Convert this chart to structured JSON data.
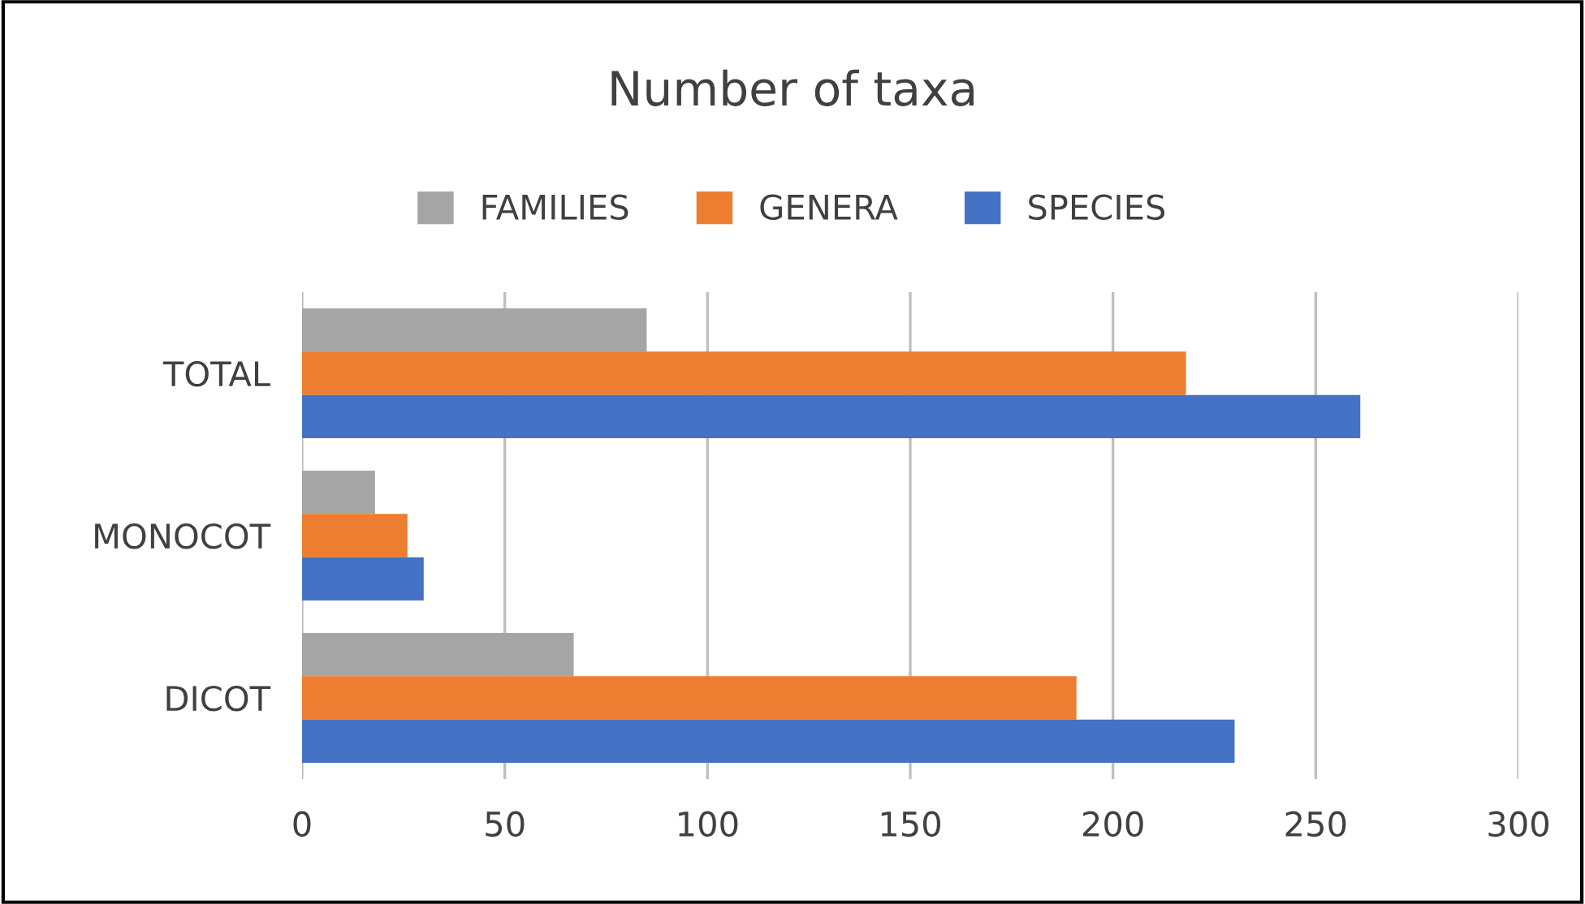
{
  "chart_data": {
    "type": "bar",
    "orientation": "horizontal",
    "title": "Number of taxa",
    "categories": [
      "TOTAL",
      "MONOCOT",
      "DICOT"
    ],
    "series": [
      {
        "name": "FAMILIES",
        "color": "#a5a5a5",
        "values": [
          85,
          18,
          67
        ]
      },
      {
        "name": "GENERA",
        "color": "#ed7d31",
        "values": [
          218,
          26,
          191
        ]
      },
      {
        "name": "SPECIES",
        "color": "#4472c4",
        "values": [
          261,
          30,
          230
        ]
      }
    ],
    "xlim": [
      0,
      300
    ],
    "xticks": [
      0,
      50,
      100,
      150,
      200,
      250,
      300
    ],
    "grid": "x",
    "legend": "top"
  }
}
